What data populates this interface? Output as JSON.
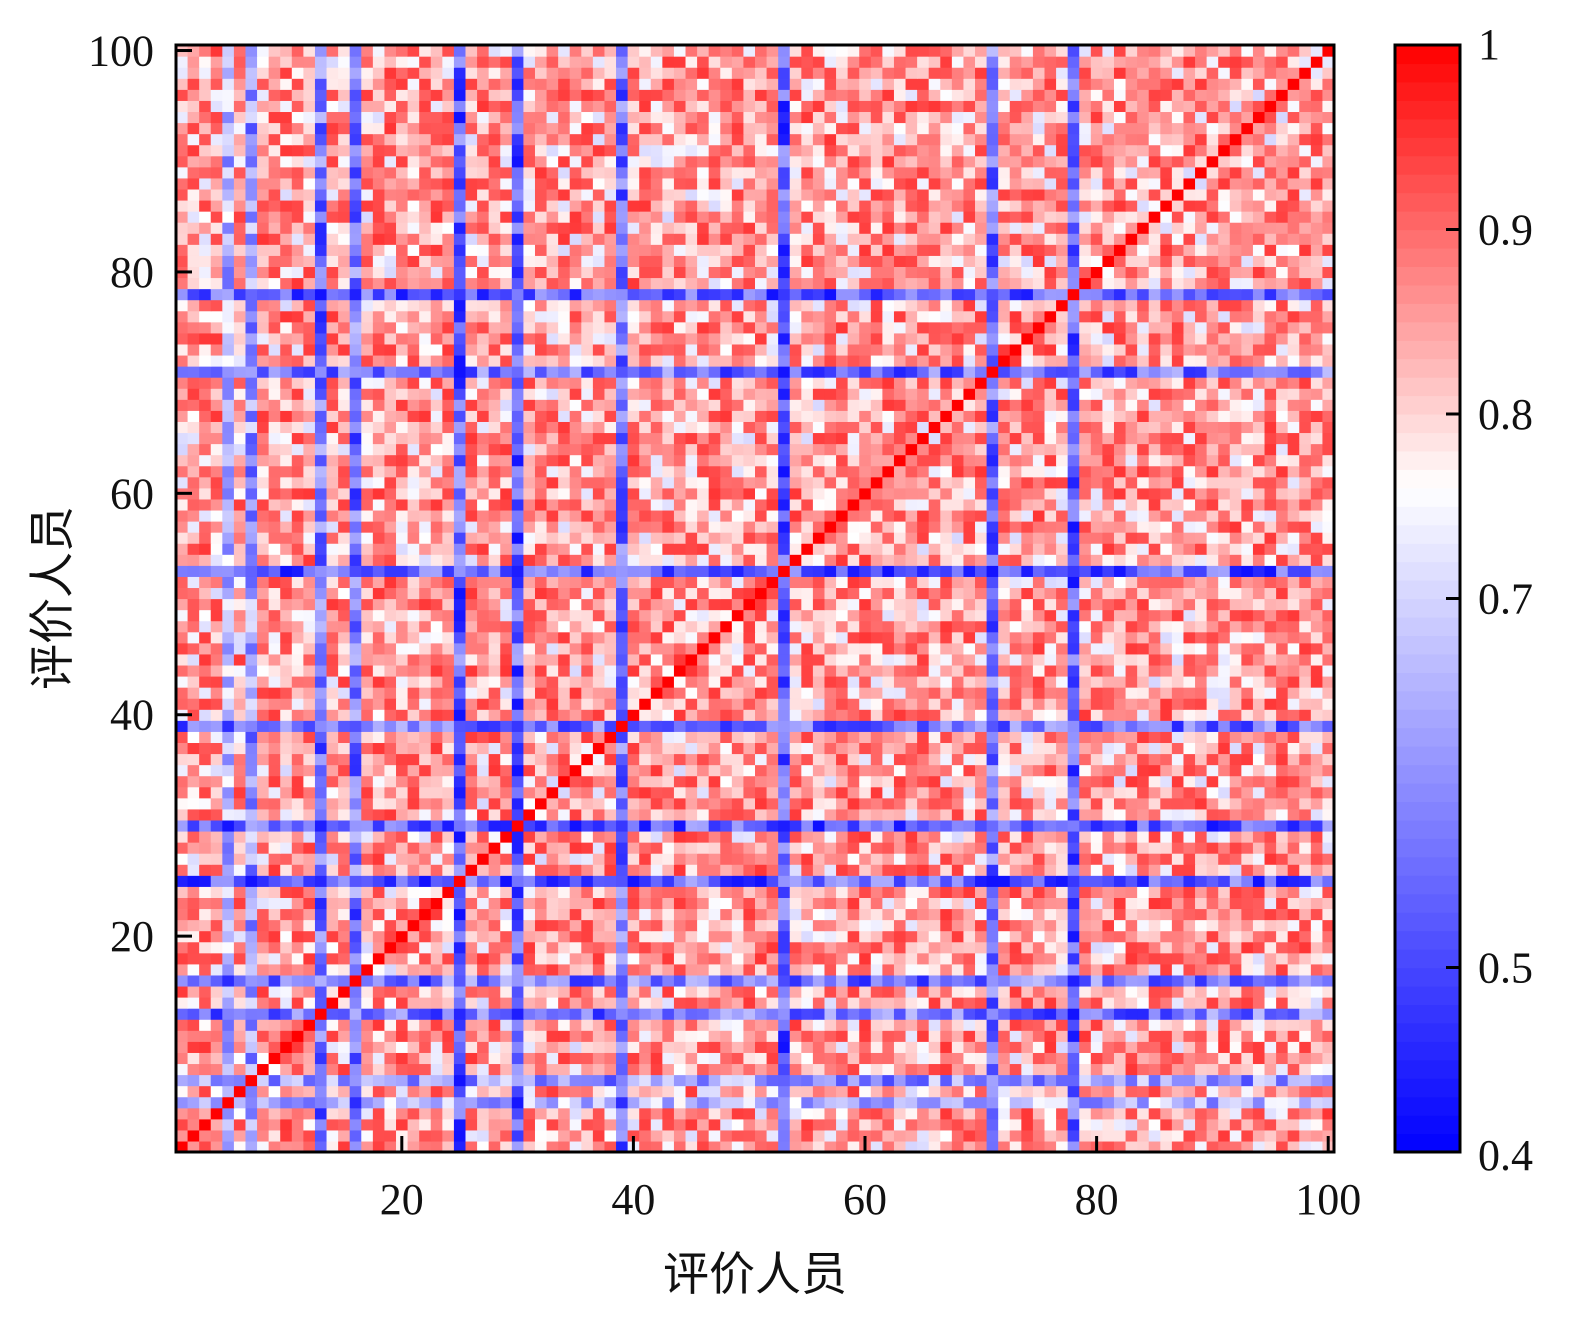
{
  "chart_data": {
    "type": "heatmap",
    "title": "",
    "xlabel": "评价人员",
    "ylabel": "评价人员",
    "x_range": [
      1,
      100
    ],
    "y_range": [
      1,
      100
    ],
    "x_ticks": [
      20,
      40,
      60,
      80,
      100
    ],
    "y_ticks": [
      20,
      40,
      60,
      80,
      100
    ],
    "matrix_size": 100,
    "diagonal_value": 1,
    "background_range": [
      0.7,
      0.95
    ],
    "low_similarity_raters": [
      {
        "rater": 5,
        "min_value": 0.55
      },
      {
        "rater": 7,
        "min_value": 0.5
      },
      {
        "rater": 13,
        "min_value": 0.45
      },
      {
        "rater": 16,
        "min_value": 0.45
      },
      {
        "rater": 25,
        "min_value": 0.42
      },
      {
        "rater": 30,
        "min_value": 0.42
      },
      {
        "rater": 39,
        "min_value": 0.45
      },
      {
        "rater": 53,
        "min_value": 0.42
      },
      {
        "rater": 71,
        "min_value": 0.45
      },
      {
        "rater": 78,
        "min_value": 0.42
      }
    ],
    "colorbar": {
      "min": 0.4,
      "max": 1,
      "ticks": [
        0.4,
        0.5,
        0.7,
        0.8,
        0.9,
        1
      ],
      "tick_labels": [
        "0.4",
        "0.5",
        "0.7",
        "0.8",
        "0.9",
        "1"
      ],
      "colors": [
        "#0000ff",
        "#ffffff",
        "#ff0000"
      ],
      "white_point": 0.76
    },
    "grid": false,
    "legend": "colorbar-right"
  }
}
